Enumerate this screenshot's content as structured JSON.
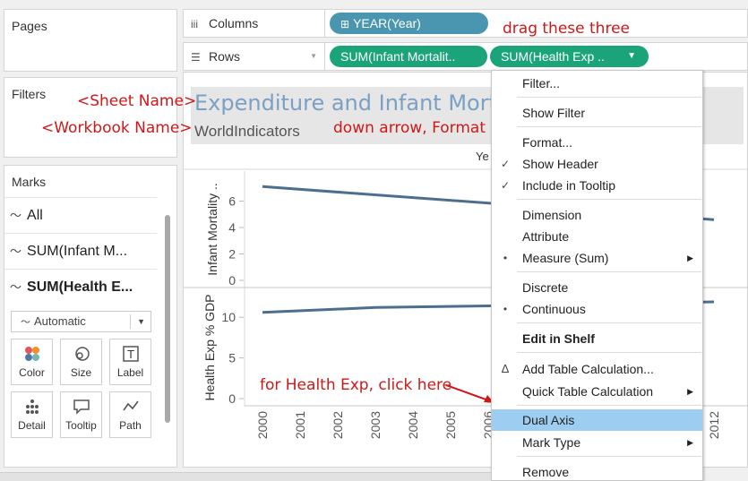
{
  "pages": {
    "title": "Pages"
  },
  "filters": {
    "title": "Filters"
  },
  "marks": {
    "title": "Marks",
    "rows": [
      {
        "label": "All"
      },
      {
        "label": "SUM(Infant M..."
      },
      {
        "label": "SUM(Health E..."
      }
    ],
    "mark_type": "Automatic",
    "cards": [
      {
        "label": "Color",
        "icon": "color-dots-icon"
      },
      {
        "label": "Size",
        "icon": "size-icon"
      },
      {
        "label": "Label",
        "icon": "label-icon"
      },
      {
        "label": "Detail",
        "icon": "detail-icon"
      },
      {
        "label": "Tooltip",
        "icon": "tooltip-icon"
      },
      {
        "label": "Path",
        "icon": "path-icon"
      }
    ]
  },
  "columns": {
    "label": "Columns",
    "pill": "YEAR(Year)"
  },
  "rows": {
    "label": "Rows",
    "pill1": "SUM(Infant Mortalit..",
    "pill2": "SUM(Health Exp .."
  },
  "annotations": {
    "drag": "drag these three",
    "sheet": "<Sheet Name>",
    "workbook": "<Workbook Name>",
    "format": "down arrow, Format",
    "health": "for Health Exp, click here"
  },
  "sheet": {
    "title": "Expenditure and Infant Mort",
    "subtitle": "WorldIndicators"
  },
  "chart_data": [
    {
      "type": "line",
      "ylabel": "Infant Mortality ..",
      "x": [
        2000,
        2012
      ],
      "yticks": [
        0,
        2,
        4,
        6
      ],
      "ylim": [
        0,
        8
      ],
      "series": [
        {
          "values_at_x": [
            7.1,
            4.6
          ]
        }
      ],
      "header": "Ye"
    },
    {
      "type": "line",
      "ylabel": "Health Exp % GDP",
      "x": [
        2000,
        2003,
        2006,
        2012
      ],
      "yticks": [
        0,
        5,
        10
      ],
      "ylim": [
        0,
        13
      ],
      "series": [
        {
          "values_at_x": [
            10.6,
            11.2,
            11.4,
            11.9
          ]
        }
      ],
      "xticks": [
        "2000",
        "2001",
        "2002",
        "2003",
        "2004",
        "2005",
        "2006",
        "2012"
      ]
    }
  ],
  "menu": {
    "items": [
      {
        "label": "Filter..."
      },
      {
        "label": "Show Filter"
      },
      {
        "label": "Format..."
      },
      {
        "label": "Show Header",
        "mark": "✓"
      },
      {
        "label": "Include in Tooltip",
        "mark": "✓"
      },
      {
        "label": "Dimension"
      },
      {
        "label": "Attribute"
      },
      {
        "label": "Measure (Sum)",
        "mark": "•",
        "submenu": true
      },
      {
        "label": "Discrete"
      },
      {
        "label": "Continuous",
        "mark": "•"
      },
      {
        "label": "Edit in Shelf"
      },
      {
        "label": "Add Table Calculation...",
        "mark": "Δ"
      },
      {
        "label": "Quick Table Calculation",
        "submenu": true
      },
      {
        "label": "Dual Axis"
      },
      {
        "label": "Mark Type",
        "submenu": true
      },
      {
        "label": "Remove"
      }
    ]
  },
  "colors": {
    "pill_blue": "#4a96b0",
    "pill_green": "#1ba47a",
    "line": "#4e6e8e",
    "annotation": "#d01818",
    "highlight": "#9ecdf2"
  }
}
